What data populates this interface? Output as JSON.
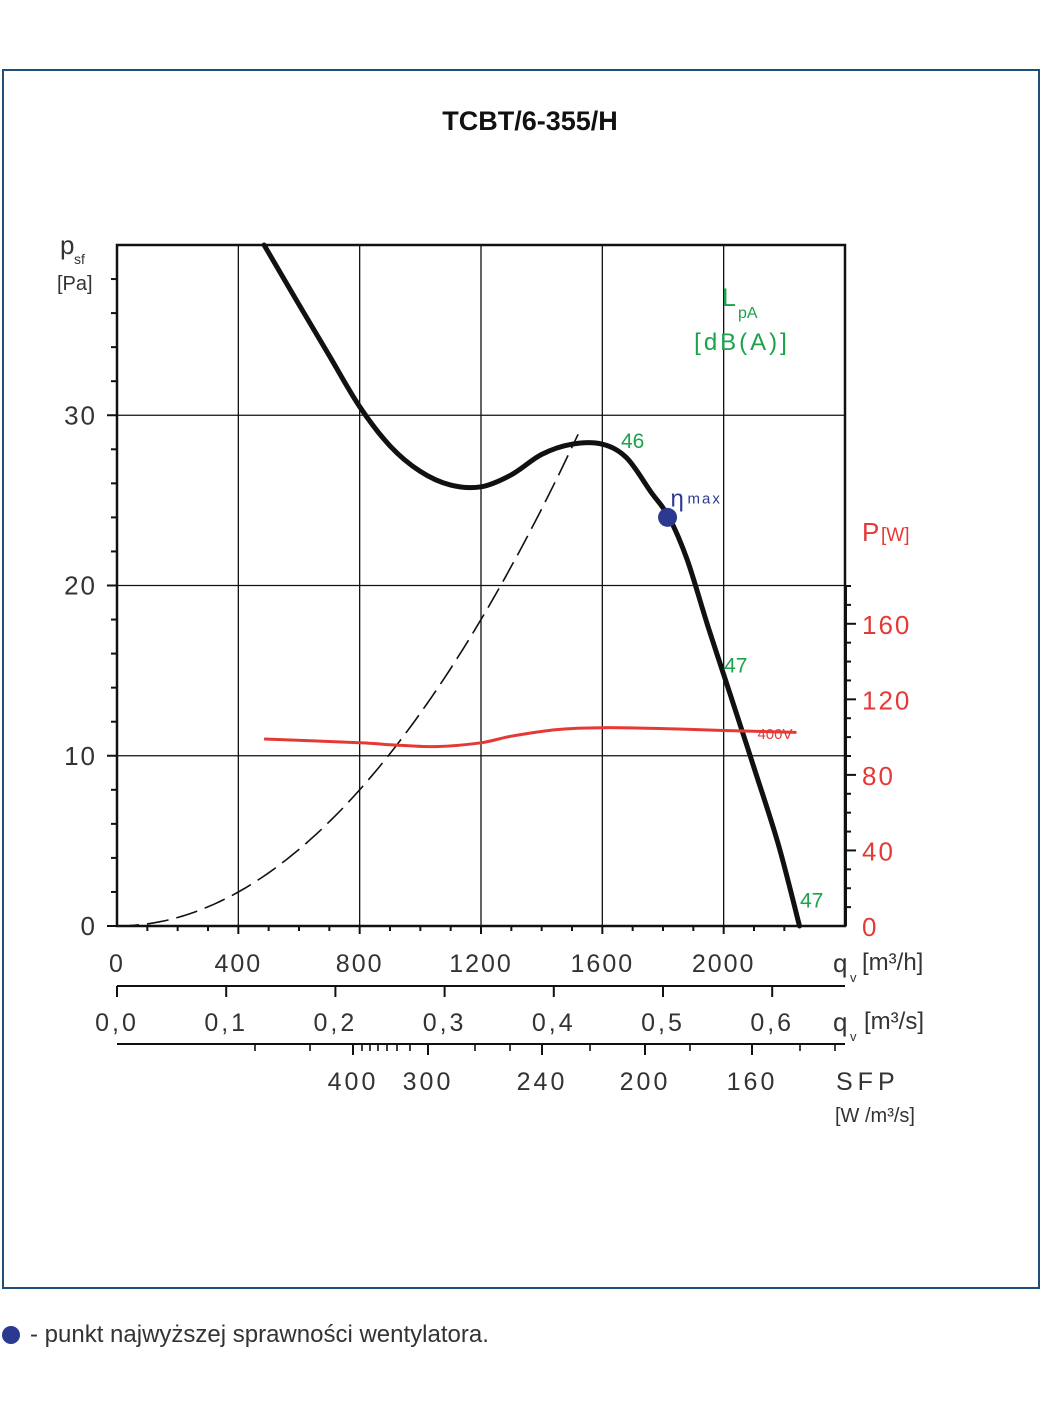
{
  "chart_data": {
    "type": "line",
    "title": "TCBT/6-355/H",
    "y_axis": {
      "label_main": "p",
      "label_sub": "sf",
      "unit": "[Pa]",
      "ticks": [
        0,
        10,
        20,
        30
      ],
      "range": [
        0,
        40
      ]
    },
    "x_axis": {
      "label_main": "q",
      "label_sub": "v",
      "unit": "[m³/h]",
      "ticks": [
        "0",
        "400",
        "800",
        "1200",
        "1600",
        "2000"
      ],
      "range": [
        0,
        2400
      ]
    },
    "x_axis_2": {
      "label_main": "q",
      "label_sub": "v",
      "unit": "[m³/s]",
      "ticks": [
        "0,0",
        "0,1",
        "0,2",
        "0,3",
        "0,4",
        "0,5",
        "0,6"
      ]
    },
    "sfp_axis": {
      "label": "SFP",
      "unit": "[W /m³/s]",
      "ticks": [
        "400",
        "300",
        "240",
        "200",
        "160"
      ]
    },
    "power_axis": {
      "label": "P",
      "unit": "[W]",
      "ticks": [
        0,
        40,
        80,
        120,
        160
      ],
      "range": [
        0,
        180
      ]
    },
    "sound_label": {
      "main": "L",
      "sub": "pA",
      "unit": "[dB(A)]"
    },
    "series": [
      {
        "color": "#111111",
        "points": [
          [
            485,
            40
          ],
          [
            600,
            36.5
          ],
          [
            700,
            33.5
          ],
          [
            800,
            30.5
          ],
          [
            900,
            28.2
          ],
          [
            1000,
            26.7
          ],
          [
            1100,
            25.9
          ],
          [
            1200,
            25.8
          ],
          [
            1300,
            26.5
          ],
          [
            1400,
            27.7
          ],
          [
            1500,
            28.3
          ],
          [
            1600,
            28.3
          ],
          [
            1680,
            27.5
          ],
          [
            1760,
            25.5
          ],
          [
            1820,
            24.0
          ],
          [
            1880,
            21.5
          ],
          [
            1950,
            17.5
          ],
          [
            2020,
            13.7
          ],
          [
            2100,
            9.3
          ],
          [
            2180,
            4.8
          ],
          [
            2250,
            0
          ]
        ]
      },
      {
        "name": "400V",
        "color": "#e53935",
        "points": [
          [
            485,
            99
          ],
          [
            800,
            97
          ],
          [
            900,
            96
          ],
          [
            1050,
            95
          ],
          [
            1200,
            97
          ],
          [
            1300,
            100.5
          ],
          [
            1450,
            104
          ],
          [
            1600,
            105
          ],
          [
            1800,
            104.5
          ],
          [
            2000,
            103.5
          ],
          [
            2240,
            102.5
          ]
        ]
      }
    ],
    "system_curve": {
      "style": "dashed",
      "k": 1.25e-05,
      "x_range": [
        0,
        1530
      ]
    },
    "annotations": [
      {
        "text": "46",
        "x": 1700,
        "y": 28.5,
        "color": "#1aa34a"
      },
      {
        "text": "47",
        "x": 2040,
        "y": 15.3,
        "color": "#1aa34a"
      },
      {
        "text": "47",
        "x": 2290,
        "y": 1.5,
        "color": "#1aa34a"
      }
    ],
    "eta_max": {
      "symbol": "η",
      "sub": "max",
      "x": 1815,
      "y": 24.0,
      "color": "#2b3990"
    },
    "grid": true
  },
  "legend": {
    "text": "- punkt najwyższej sprawności wentylatora."
  }
}
